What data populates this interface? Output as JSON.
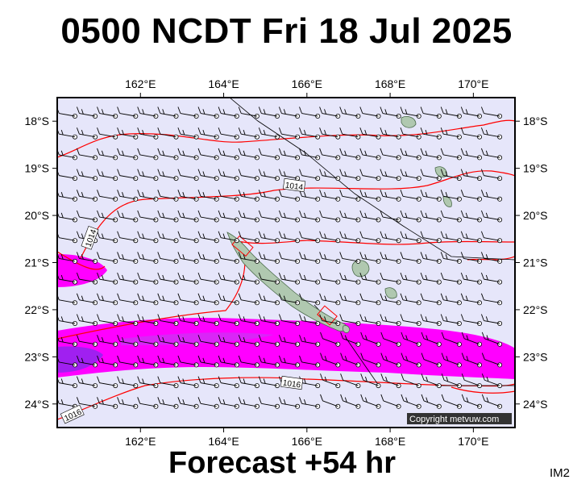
{
  "title": "0500 NCDT Fri 18 Jul 2025",
  "footer": "Forecast +54 hr",
  "code": "IM2",
  "copyright": "Copyright metvuw.com",
  "lon_ticks": [
    "162°E",
    "164°E",
    "166°E",
    "168°E",
    "170°E"
  ],
  "lat_ticks": [
    "18°S",
    "19°S",
    "20°S",
    "21°S",
    "22°S",
    "23°S",
    "24°S"
  ],
  "isobar_labels": [
    "1014",
    "1014",
    "1016",
    "1016"
  ],
  "colors": {
    "ocean": "#e6e6fa",
    "isobar": "#ff0000",
    "wind_band_outer": "#ff00ff",
    "wind_band_inner": "#a020f0",
    "land": "#b0c8b0",
    "frame": "#000000"
  },
  "map": {
    "lon_range": [
      160.0,
      171.0
    ],
    "lat_range": [
      -24.5,
      -17.5
    ],
    "regions": [
      "New Caledonia",
      "Loyalty Islands",
      "Vanuatu"
    ]
  }
}
